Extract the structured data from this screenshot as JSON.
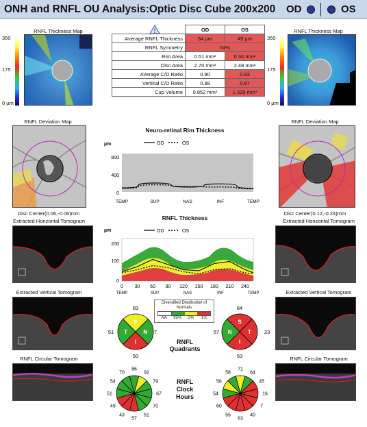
{
  "header": {
    "title": "ONH and RNFL OU Analysis:Optic Disc Cube 200x200",
    "od_label": "OD",
    "os_label": "OS"
  },
  "left": {
    "thickness_map_title": "RNFL Thickness Map",
    "scale_top": "350",
    "scale_mid": "175",
    "scale_bottom": "0 µm",
    "deviation_title": "RNFL Deviation Map",
    "disc_center": "Disc Center(0.06,-0.06)mm",
    "horizontal_title": "Extracted Horizontal Tomogram",
    "vertical_title": "Extracted Vertical Tomogram",
    "circular_title": "RNFL Circular Tomogram"
  },
  "right": {
    "thickness_map_title": "RNFL Thickness Map",
    "scale_top": "350",
    "scale_mid": "175",
    "scale_bottom": "0 µm",
    "deviation_title": "RNFL Deviation Map",
    "disc_center": "Disc Center(0.12,-0.24)mm",
    "horizontal_title": "Extracted Horizontal Tomogram",
    "vertical_title": "Extracted Vertical Tomogram",
    "circular_title": "RNFL Circular Tomogram"
  },
  "table": {
    "col_od": "OD",
    "col_os": "OS",
    "rows": [
      {
        "label": "Average RNFL Thickness",
        "od": "64 µm",
        "os": "49 µm",
        "od_color": "#e05858",
        "os_color": "#e05858"
      },
      {
        "label": "RNFL Symmetry",
        "merged": "54%",
        "color": "#e05858"
      },
      {
        "label": "Rim Area",
        "od": "0.51 mm²",
        "os": "0.34 mm²",
        "od_color": "#ffffff",
        "os_color": "#e05858"
      },
      {
        "label": "Disc Area",
        "od": "2.70 mm²",
        "os": "2.48 mm²",
        "od_color": "#ffffff",
        "os_color": "#ffffff"
      },
      {
        "label": "Average C/D Ratio",
        "od": "0.90",
        "os": "0.93",
        "od_color": "#ffffff",
        "os_color": "#e05858"
      },
      {
        "label": "Vertical C/D Ratio",
        "od": "0.88",
        "os": "0.87",
        "od_color": "#ffffff",
        "os_color": "#e05858"
      },
      {
        "label": "Cup Volume",
        "od": "0.852 mm³",
        "os": "1.328 mm³",
        "od_color": "#ffffff",
        "os_color": "#e05858"
      }
    ]
  },
  "rim_chart": {
    "title": "Neuro-retinal Rim Thickness",
    "unit": "µm",
    "legend_od": "OD",
    "legend_os": "OS",
    "y_ticks": [
      "800",
      "400",
      "0"
    ],
    "x_ticks": [
      "TEMP",
      "SUP",
      "NAS",
      "INF",
      "TEMP"
    ]
  },
  "rnfl_chart": {
    "title": "RNFL Thickness",
    "unit": "µm",
    "legend_od": "OD",
    "legend_os": "OS",
    "y_ticks": [
      "200",
      "100",
      "0"
    ],
    "x_ticks": [
      "0",
      "30",
      "60",
      "90",
      "120",
      "150",
      "180",
      "210",
      "240"
    ],
    "x_cat_labels": [
      "TEMP",
      "SUP",
      "NAS",
      "INF",
      "TEMP"
    ]
  },
  "legend_box": {
    "title": "Diversified Distribution of Normals",
    "labels": [
      "NA",
      "95%",
      "5%",
      "1%"
    ],
    "colors": [
      "#ffffff",
      "#33aa33",
      "#eeee22",
      "#e03030"
    ]
  },
  "quadrants": {
    "label": "RNFL Quadrants",
    "od": {
      "top": "83",
      "left": "51",
      "right": "72",
      "bottom": "50",
      "letters": [
        "S",
        "N",
        "I",
        "T"
      ],
      "colors": [
        "#eeee22",
        "#33aa33",
        "#e03030",
        "#33aa33"
      ]
    },
    "os": {
      "top": "64",
      "left": "57",
      "right": "23",
      "bottom": "53",
      "letters": [
        "S",
        "T",
        "I",
        "N"
      ],
      "colors": [
        "#e03030",
        "#e03030",
        "#e03030",
        "#33aa33"
      ]
    }
  },
  "clock": {
    "label": "RNFL Clock Hours",
    "od": {
      "values": [
        "86",
        "92",
        "79",
        "67",
        "70",
        "51",
        "57",
        "43",
        "49",
        "51",
        "54",
        "70"
      ],
      "colors": [
        "#33aa33",
        "#eeee22",
        "#33aa33",
        "#33aa33",
        "#33aa33",
        "#33aa33",
        "#e03030",
        "#e03030",
        "#e03030",
        "#33aa33",
        "#33aa33",
        "#33aa33"
      ]
    },
    "os": {
      "values": [
        "71",
        "64",
        "45",
        "16",
        "7",
        "40",
        "63",
        "55",
        "60",
        "54",
        "56",
        "58"
      ],
      "colors": [
        "#eeee22",
        "#33aa33",
        "#e03030",
        "#e03030",
        "#e03030",
        "#e03030",
        "#e03030",
        "#e03030",
        "#e03030",
        "#33aa33",
        "#eeee22",
        "#33aa33"
      ]
    }
  },
  "chart_data": [
    {
      "type": "line",
      "title": "Neuro-retinal Rim Thickness",
      "ylabel": "µm",
      "categories": [
        "TEMP",
        "SUP",
        "NAS",
        "INF",
        "TEMP"
      ],
      "ylim": [
        0,
        800
      ],
      "series": [
        {
          "name": "OD",
          "values": [
            90,
            200,
            110,
            180,
            80
          ]
        },
        {
          "name": "OS",
          "values": [
            80,
            160,
            120,
            110,
            70
          ]
        }
      ]
    },
    {
      "type": "line",
      "title": "RNFL Thickness",
      "ylabel": "µm",
      "x": [
        0,
        30,
        60,
        90,
        120,
        150,
        180,
        210,
        240,
        256
      ],
      "ylim": [
        0,
        200
      ],
      "series": [
        {
          "name": "OD",
          "values": [
            45,
            70,
            105,
            80,
            55,
            50,
            85,
            95,
            55,
            40
          ]
        },
        {
          "name": "OS",
          "values": [
            40,
            55,
            75,
            65,
            45,
            35,
            55,
            60,
            40,
            35
          ]
        }
      ]
    }
  ]
}
